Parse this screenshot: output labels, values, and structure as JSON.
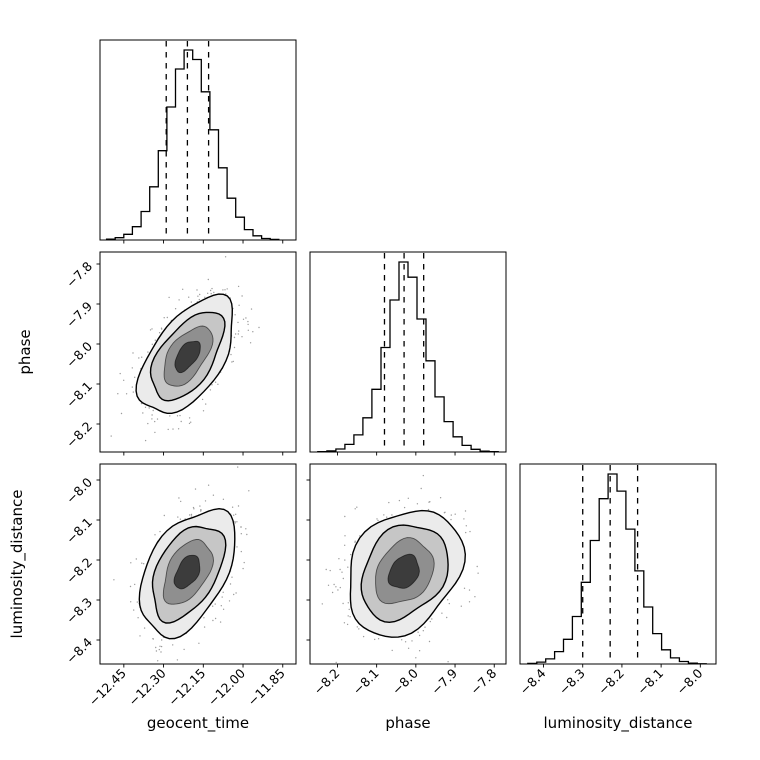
{
  "figure": {
    "background": "#ffffff"
  },
  "chart_data": {
    "type": "scatter",
    "subtype": "corner-plot (pairwise 2D posteriors with marginal histograms, lower triangle 3x3)",
    "grid": "on-frame, no gridlines",
    "parameters": [
      {
        "name": "geocent_time",
        "label": "geocent_time",
        "lim": [
          -12.54,
          -11.8
        ],
        "ticks": [
          {
            "value": -12.45,
            "label": "−12.45"
          },
          {
            "value": -12.3,
            "label": "−12.30"
          },
          {
            "value": -12.15,
            "label": "−12.15"
          },
          {
            "value": -12.0,
            "label": "−12.00"
          },
          {
            "value": -11.85,
            "label": "−11.85"
          }
        ],
        "quantile_lines": [
          -12.29,
          -12.21,
          -12.13
        ],
        "hist": {
          "range": [
            -12.515,
            -11.865
          ],
          "counts": [
            0.004,
            0.012,
            0.03,
            0.07,
            0.15,
            0.28,
            0.47,
            0.7,
            0.9,
            1.0,
            0.95,
            0.78,
            0.58,
            0.38,
            0.22,
            0.12,
            0.055,
            0.022,
            0.008,
            0.003
          ]
        }
      },
      {
        "name": "phase",
        "label": "phase",
        "lim": [
          -8.27,
          -7.77
        ],
        "ticks": [
          {
            "value": -8.2,
            "label": "−8.2"
          },
          {
            "value": -8.1,
            "label": "−8.1"
          },
          {
            "value": -8.0,
            "label": "−8.0"
          },
          {
            "value": -7.9,
            "label": "−7.9"
          },
          {
            "value": -7.8,
            "label": "−7.8"
          }
        ],
        "quantile_lines": [
          -8.08,
          -8.03,
          -7.98
        ],
        "hist": {
          "range": [
            -8.25,
            -7.79
          ],
          "counts": [
            0.002,
            0.006,
            0.016,
            0.04,
            0.09,
            0.18,
            0.33,
            0.55,
            0.8,
            1.0,
            0.92,
            0.7,
            0.48,
            0.29,
            0.16,
            0.08,
            0.035,
            0.014,
            0.005,
            0.002
          ]
        }
      },
      {
        "name": "luminosity_distance",
        "label": "luminosity_distance",
        "lim": [
          -8.46,
          -7.96
        ],
        "ticks": [
          {
            "value": -8.4,
            "label": "−8.4"
          },
          {
            "value": -8.3,
            "label": "−8.3"
          },
          {
            "value": -8.2,
            "label": "−8.2"
          },
          {
            "value": -8.1,
            "label": "−8.1"
          },
          {
            "value": -8.0,
            "label": "−8.0"
          }
        ],
        "quantile_lines": [
          -8.3,
          -8.23,
          -8.16
        ],
        "hist": {
          "range": [
            -8.44,
            -7.985
          ],
          "counts": [
            0.003,
            0.01,
            0.027,
            0.065,
            0.13,
            0.25,
            0.43,
            0.65,
            0.87,
            1.0,
            0.91,
            0.71,
            0.49,
            0.3,
            0.16,
            0.075,
            0.032,
            0.013,
            0.004,
            0.001
          ]
        }
      }
    ],
    "joint_panels": [
      {
        "x": "geocent_time",
        "y": "phase",
        "mean": [
          -12.21,
          -8.03
        ],
        "sigma": [
          0.08,
          0.065
        ],
        "correlation": 0.55,
        "n_points": 1200,
        "seed": 7
      },
      {
        "x": "geocent_time",
        "y": "luminosity_distance",
        "mean": [
          -12.21,
          -8.23
        ],
        "sigma": [
          0.08,
          0.07
        ],
        "correlation": 0.45,
        "n_points": 1200,
        "seed": 11
      },
      {
        "x": "phase",
        "y": "luminosity_distance",
        "mean": [
          -8.03,
          -8.23
        ],
        "sigma": [
          0.065,
          0.07
        ],
        "correlation": 0.25,
        "n_points": 1200,
        "seed": 13
      }
    ],
    "contours": {
      "levels_sigma": [
        2.25,
        1.7,
        1.15,
        0.6
      ],
      "fill_colors": [
        "#ebebeb",
        "#c6c6c6",
        "#8f8f8f",
        "#3c3c3c"
      ],
      "line_color": "#000000"
    },
    "style": {
      "scatter_color": "#3a3a3a",
      "hist_line_color": "#000000",
      "quantile_line_style": "dashed",
      "axis_color": "#000000",
      "tick_label_rotation_deg": 45
    }
  }
}
